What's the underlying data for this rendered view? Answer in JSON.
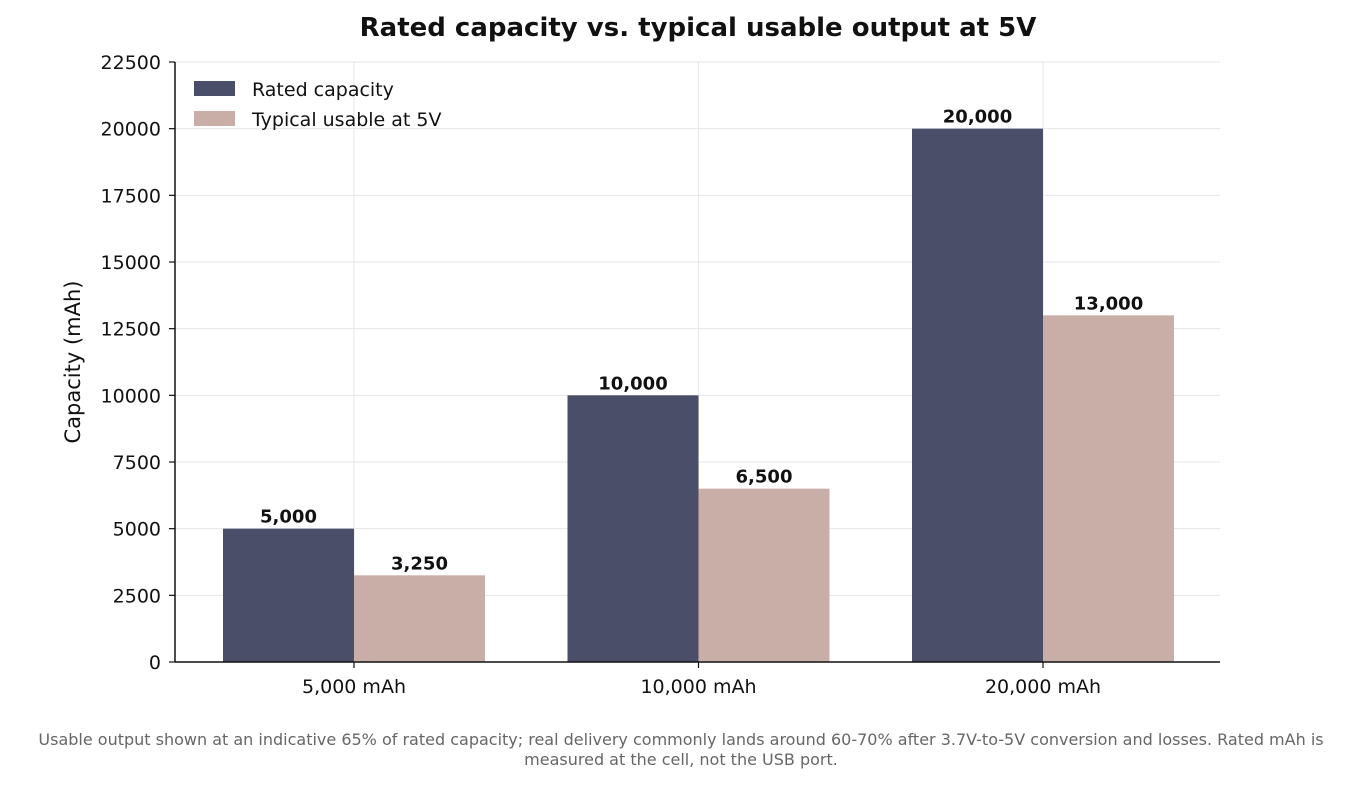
{
  "chart_data": {
    "type": "bar",
    "title": "Rated capacity vs. typical usable output at 5V",
    "xlabel": "",
    "ylabel": "Capacity (mAh)",
    "categories": [
      "5,000 mAh",
      "10,000 mAh",
      "20,000 mAh"
    ],
    "series": [
      {
        "name": "Rated capacity",
        "color": "#4a4e69",
        "values": [
          5000,
          10000,
          20000
        ],
        "labels": [
          "5,000",
          "10,000",
          "20,000"
        ]
      },
      {
        "name": "Typical usable at 5V",
        "color": "#c9ada7",
        "values": [
          3250,
          6500,
          13000
        ],
        "labels": [
          "3,250",
          "6,500",
          "13,000"
        ]
      }
    ],
    "ylim": [
      0,
      22500
    ],
    "yticks": [
      0,
      2500,
      5000,
      7500,
      10000,
      12500,
      15000,
      17500,
      20000,
      22500
    ],
    "grid": true,
    "legend_position": "top-left"
  },
  "footnote": {
    "line1": "Usable output shown at an indicative 65% of rated capacity; real delivery commonly lands around 60-70% after 3.7V-to-5V conversion and losses. Rated mAh is",
    "line2": "measured at the cell, not the USB port."
  }
}
